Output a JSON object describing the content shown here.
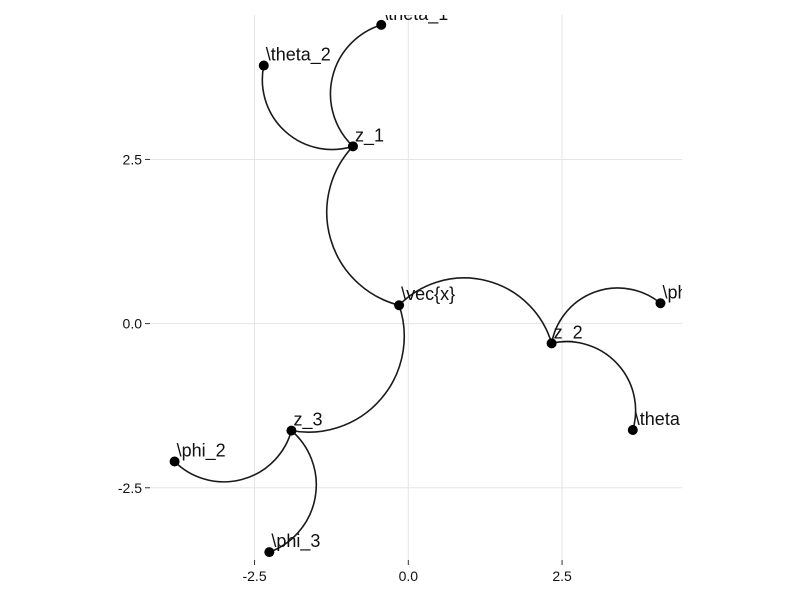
{
  "chart_data": {
    "type": "graph",
    "title": "",
    "xlabel": "",
    "ylabel": "",
    "xlim": [
      -4.2,
      4.45
    ],
    "ylim": [
      -3.6,
      4.7
    ],
    "grid": true,
    "xticks": [
      {
        "value": -2.5,
        "label": "-2.5"
      },
      {
        "value": 0.0,
        "label": "0.0"
      },
      {
        "value": 2.5,
        "label": "2.5"
      }
    ],
    "yticks": [
      {
        "value": 2.5,
        "label": "2.5"
      },
      {
        "value": 0.0,
        "label": "0.0"
      },
      {
        "value": -2.5,
        "label": "-2.5"
      }
    ],
    "nodes": [
      {
        "id": "x",
        "label": "\\vec{x}",
        "x": -0.15,
        "y": 0.28
      },
      {
        "id": "z1",
        "label": "z_1",
        "x": -0.9,
        "y": 2.7
      },
      {
        "id": "z2",
        "label": "z_2",
        "x": 2.33,
        "y": -0.3
      },
      {
        "id": "z3",
        "label": "z_3",
        "x": -1.9,
        "y": -1.63
      },
      {
        "id": "theta1",
        "label": "\\theta_1",
        "x": -0.44,
        "y": 4.55
      },
      {
        "id": "theta2",
        "label": "\\theta_2",
        "x": -2.35,
        "y": 3.93
      },
      {
        "id": "phi",
        "label": "\\ph",
        "x": 4.1,
        "y": 0.31
      },
      {
        "id": "theta",
        "label": "\\theta",
        "x": 3.65,
        "y": -1.62
      },
      {
        "id": "phi2",
        "label": "\\phi_2",
        "x": -3.8,
        "y": -2.1
      },
      {
        "id": "phi3",
        "label": "\\phi_3",
        "x": -2.26,
        "y": -3.48
      }
    ],
    "edges": [
      {
        "from": "x",
        "to": "z1",
        "bend": "left"
      },
      {
        "from": "x",
        "to": "z2",
        "bend": "left"
      },
      {
        "from": "x",
        "to": "z3",
        "bend": "left"
      },
      {
        "from": "z1",
        "to": "theta1",
        "bend": "left"
      },
      {
        "from": "z1",
        "to": "theta2",
        "bend": "left"
      },
      {
        "from": "z2",
        "to": "phi",
        "bend": "left"
      },
      {
        "from": "z2",
        "to": "theta",
        "bend": "left"
      },
      {
        "from": "z3",
        "to": "phi2",
        "bend": "left"
      },
      {
        "from": "z3",
        "to": "phi3",
        "bend": "left"
      }
    ]
  }
}
